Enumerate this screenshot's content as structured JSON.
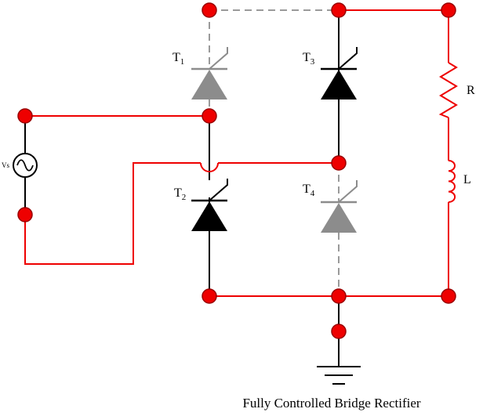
{
  "labels": {
    "vs": "Vs",
    "t1": {
      "main": "T",
      "sub": "1"
    },
    "t2": {
      "main": "T",
      "sub": "2"
    },
    "t3": {
      "main": "T",
      "sub": "3"
    },
    "t4": {
      "main": "T",
      "sub": "4"
    },
    "r": "R",
    "l": "L"
  },
  "caption": "Fully Controlled Bridge Rectifier",
  "colors": {
    "wire_active": "#ff0000",
    "wire_inactive": "#999999",
    "device_active": "#000000",
    "device_inactive": "#8c8c8c",
    "node_fill": "#ee0000",
    "node_stroke": "#990000"
  }
}
